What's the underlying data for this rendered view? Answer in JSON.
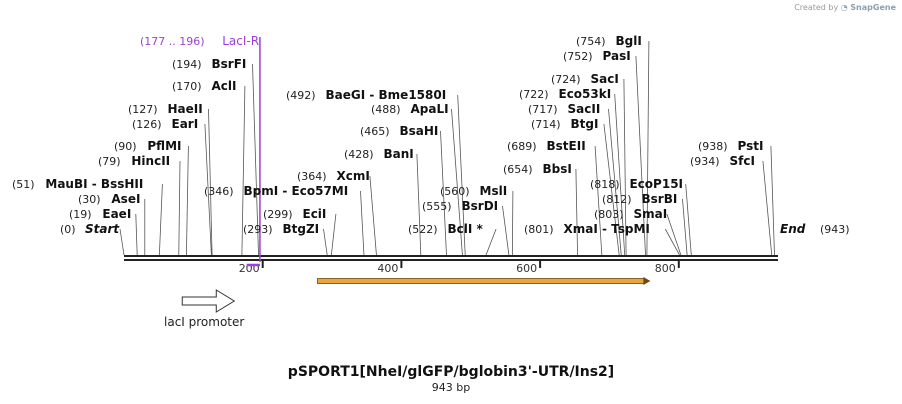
{
  "app": {
    "credit_prefix": "Created by",
    "credit_brand": "SnapGene"
  },
  "plasmid": {
    "name": "pSPORT1[NheI/glGFP/bglobin3'-UTR/Ins2]",
    "length_label": "943 bp",
    "length_bp": 943
  },
  "ruler": {
    "ticks": [
      200,
      400,
      600,
      800
    ]
  },
  "ends": {
    "start": {
      "label": "Start",
      "pos_label": "(0)",
      "bp": 0
    },
    "end": {
      "label": "End",
      "pos_label": "(943)",
      "bp": 943
    }
  },
  "sites": [
    {
      "name": "LacI-R",
      "pos_label": "(177 .. 196)",
      "bp": 196,
      "primer": true
    },
    {
      "name": "BsrFI",
      "pos_label": "(194)",
      "bp": 194
    },
    {
      "name": "AclI",
      "pos_label": "(170)",
      "bp": 170
    },
    {
      "name": "HaeII",
      "pos_label": "(127)",
      "bp": 127
    },
    {
      "name": "EarI",
      "pos_label": "(126)",
      "bp": 126
    },
    {
      "name": "PflMI",
      "pos_label": "(90)",
      "bp": 90
    },
    {
      "name": "HincII",
      "pos_label": "(79)",
      "bp": 79
    },
    {
      "name": "MauBI  - BssHII",
      "pos_label": "(51)",
      "bp": 51
    },
    {
      "name": "AseI",
      "pos_label": "(30)",
      "bp": 30
    },
    {
      "name": "EaeI",
      "pos_label": "(19)",
      "bp": 19
    },
    {
      "name": "BpmI  - Eco57MI",
      "pos_label": "(346)",
      "bp": 346
    },
    {
      "name": "EciI",
      "pos_label": "(299)",
      "bp": 299
    },
    {
      "name": "BtgZI",
      "pos_label": "(293)",
      "bp": 293
    },
    {
      "name": "BaeGI  - Bme1580I",
      "pos_label": "(492)",
      "bp": 492
    },
    {
      "name": "ApaLI",
      "pos_label": "(488)",
      "bp": 488
    },
    {
      "name": "BsaHI",
      "pos_label": "(465)",
      "bp": 465
    },
    {
      "name": "BanI",
      "pos_label": "(428)",
      "bp": 428
    },
    {
      "name": "XcmI",
      "pos_label": "(364)",
      "bp": 364
    },
    {
      "name": "MslI",
      "pos_label": "(560)",
      "bp": 560
    },
    {
      "name": "BsrDI",
      "pos_label": "(555)",
      "bp": 555
    },
    {
      "name": "BclI *",
      "pos_label": "(522)",
      "bp": 522
    },
    {
      "name": "BglI",
      "pos_label": "(754)",
      "bp": 754
    },
    {
      "name": "PasI",
      "pos_label": "(752)",
      "bp": 752
    },
    {
      "name": "SacI",
      "pos_label": "(724)",
      "bp": 724
    },
    {
      "name": "Eco53kI",
      "pos_label": "(722)",
      "bp": 722
    },
    {
      "name": "SacII",
      "pos_label": "(717)",
      "bp": 717
    },
    {
      "name": "BtgI",
      "pos_label": "(714)",
      "bp": 714
    },
    {
      "name": "BstEII",
      "pos_label": "(689)",
      "bp": 689
    },
    {
      "name": "BbsI",
      "pos_label": "(654)",
      "bp": 654
    },
    {
      "name": "EcoP15I",
      "pos_label": "(818)",
      "bp": 818
    },
    {
      "name": "BsrBI",
      "pos_label": "(812)",
      "bp": 812
    },
    {
      "name": "SmaI",
      "pos_label": "(803)",
      "bp": 803
    },
    {
      "name": "XmaI  - TspMI",
      "pos_label": "(801)",
      "bp": 801
    },
    {
      "name": "PstI",
      "pos_label": "(938)",
      "bp": 938
    },
    {
      "name": "SfcI",
      "pos_label": "(934)",
      "bp": 934
    }
  ],
  "features": [
    {
      "name": "lacI promoter",
      "type": "promoter",
      "start_bp": 84,
      "end_bp": 159,
      "direction": "forward",
      "color": "#ffffff"
    },
    {
      "name": "",
      "type": "orf",
      "start_bp": 279,
      "end_bp": 759,
      "direction": "forward",
      "color": "#e8a53c"
    }
  ],
  "colors": {
    "backbone": "#222222",
    "primer": "#9b3fd6",
    "orf": "#e8a53c",
    "leader": "#555555"
  }
}
